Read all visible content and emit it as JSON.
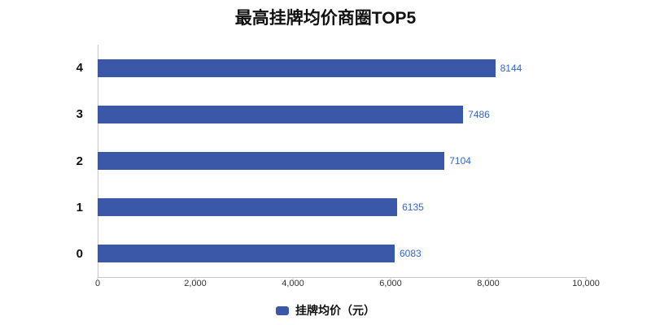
{
  "chart_data": {
    "type": "bar",
    "orientation": "horizontal",
    "title": "最高挂牌均价商圈TOP5",
    "categories": [
      "4",
      "3",
      "2",
      "1",
      "0"
    ],
    "values": [
      8144,
      7486,
      7104,
      6135,
      6083
    ],
    "series_name": "挂牌均价（元）",
    "xlabel": "",
    "ylabel": "",
    "xlim": [
      0,
      10000
    ],
    "x_ticks": [
      "0",
      "2,000",
      "4,000",
      "6,000",
      "8,000",
      "10,000"
    ],
    "grid": false,
    "legend_position": "bottom",
    "bar_color": "#3A57A8",
    "value_label_color": "#3366CC"
  },
  "legend": {
    "label": "挂牌均价（元）"
  }
}
